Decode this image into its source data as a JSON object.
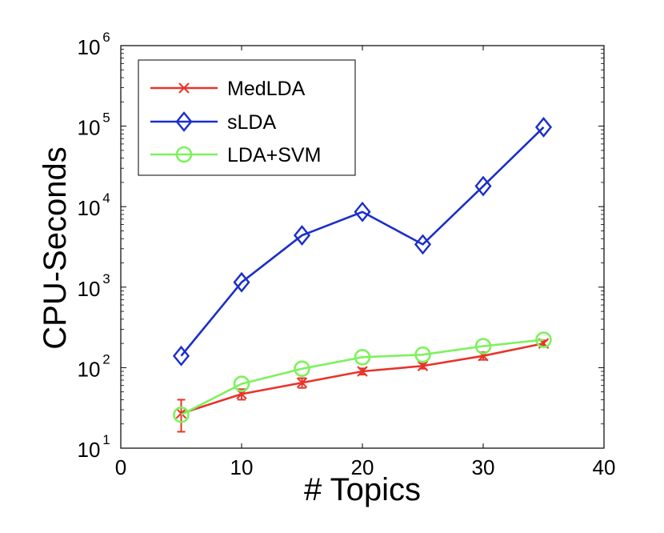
{
  "chart_data": {
    "type": "line",
    "title": "",
    "xlabel": "# Topics",
    "ylabel": "CPU-Seconds",
    "xlim": [
      0,
      40
    ],
    "ylim": [
      10,
      1000000
    ],
    "yscale": "log",
    "grid": false,
    "legend_position": "top-left",
    "x_ticks": [
      0,
      10,
      20,
      30,
      40
    ],
    "y_ticks": [
      {
        "base": "10",
        "exp": "1"
      },
      {
        "base": "10",
        "exp": "2"
      },
      {
        "base": "10",
        "exp": "3"
      },
      {
        "base": "10",
        "exp": "4"
      },
      {
        "base": "10",
        "exp": "5"
      },
      {
        "base": "10",
        "exp": "6"
      }
    ],
    "x": [
      5,
      10,
      15,
      20,
      25,
      30,
      35
    ],
    "series": [
      {
        "name": "MedLDA",
        "color": "#e8342a",
        "marker": "x",
        "values": [
          27,
          47,
          65,
          90,
          105,
          140,
          200
        ],
        "error": [
          [
            16,
            40
          ],
          [
            40,
            54
          ],
          [
            56,
            74
          ],
          [
            82,
            98
          ],
          [
            97,
            114
          ],
          [
            125,
            155
          ],
          [
            182,
            218
          ]
        ]
      },
      {
        "name": "sLDA",
        "color": "#1a2fc9",
        "marker": "diamond",
        "values": [
          140,
          1150,
          4400,
          8600,
          3400,
          18000,
          97000
        ]
      },
      {
        "name": "LDA+SVM",
        "color": "#7cf25c",
        "marker": "circle",
        "values": [
          26,
          63,
          97,
          135,
          145,
          185,
          222
        ]
      }
    ]
  }
}
